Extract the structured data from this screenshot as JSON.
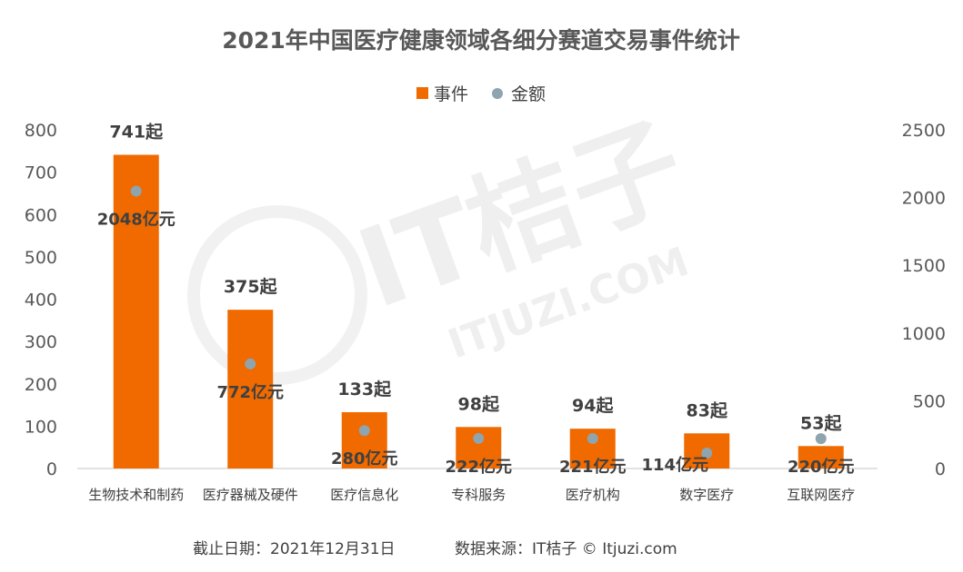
{
  "chart_data": {
    "type": "bar",
    "title": "2021年中国医疗健康领域各细分赛道交易事件统计",
    "categories": [
      "生物技术和制药",
      "医疗器械及硬件",
      "医疗信息化",
      "专科服务",
      "医疗机构",
      "数字医疗",
      "互联网医疗"
    ],
    "series": [
      {
        "name": "事件",
        "kind": "bar",
        "axis": "left",
        "color": "#F06A00",
        "values": [
          741,
          375,
          133,
          98,
          94,
          83,
          53
        ],
        "labels": [
          "741起",
          "375起",
          "133起",
          "98起",
          "94起",
          "83起",
          "53起"
        ]
      },
      {
        "name": "金额",
        "kind": "scatter",
        "axis": "right",
        "color": "#8EA4AE",
        "values": [
          2048,
          772,
          280,
          222,
          221,
          114,
          220
        ],
        "labels": [
          "2048亿元",
          "772亿元",
          "280亿元",
          "222亿元",
          "221亿元",
          "114亿元",
          "220亿元"
        ]
      }
    ],
    "y_left": {
      "min": 0,
      "max": 800,
      "ticks": [
        "0",
        "100",
        "200",
        "300",
        "400",
        "500",
        "600",
        "700",
        "800"
      ]
    },
    "y_right": {
      "min": 0,
      "max": 2500,
      "ticks": [
        "0",
        "500",
        "1000",
        "1500",
        "2000",
        "2500"
      ]
    },
    "legend_position": "top",
    "grid": false
  },
  "footer": {
    "date": "截止日期：2021年12月31日",
    "source": "数据来源：IT桔子 © Itjuzi.com"
  },
  "watermark": {
    "main": "IT桔子",
    "sub": "ITJUZI.COM"
  }
}
